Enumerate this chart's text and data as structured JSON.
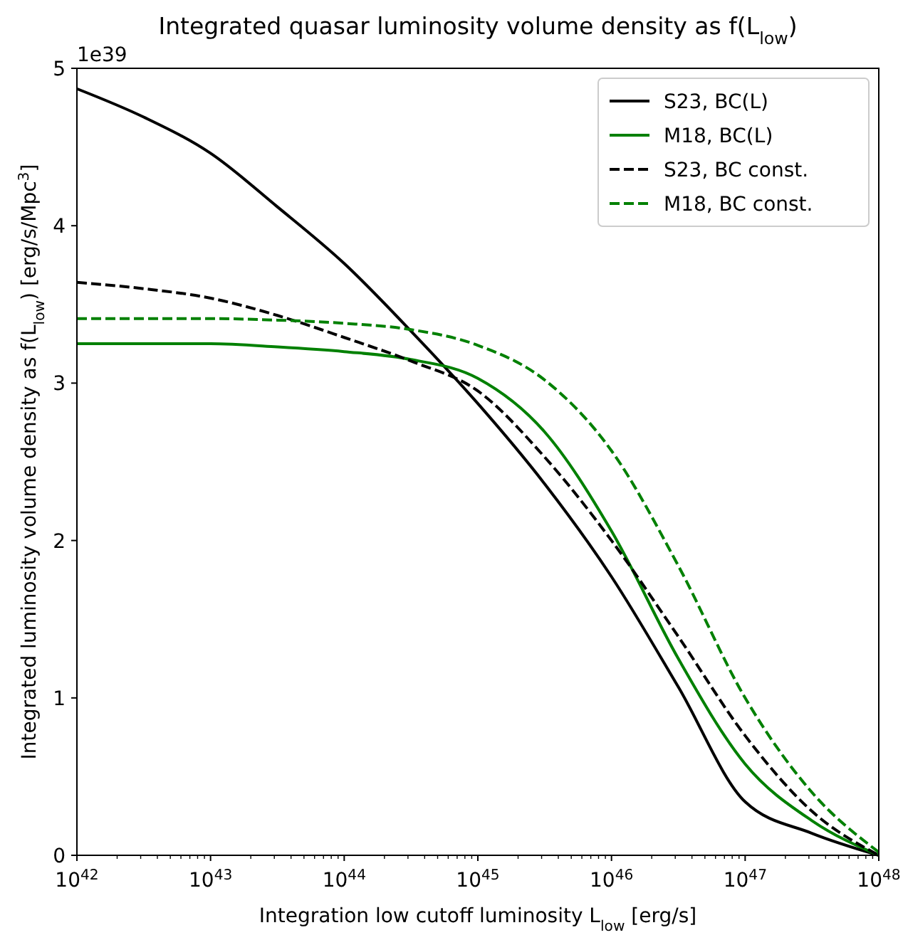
{
  "chart_data": {
    "type": "line",
    "title": "Integrated quasar luminosity volume density as f(L$_{low}$)",
    "xlabel": "Integration low cutoff luminosity L$_{low}$ [erg/s]",
    "ylabel": "Integrated luminosity volume density as f(L$_{low}$) [erg/s/Mpc$^{3}$]",
    "annotations": [
      "1e39"
    ],
    "x": [
      1e+42,
      3.16e+42,
      1e+43,
      3.16e+43,
      1e+44,
      3.16e+44,
      1e+45,
      3.16e+45,
      1e+46,
      3.16e+46,
      1e+47,
      3.16e+47,
      1e+48
    ],
    "series": [
      {
        "name": "S23, BC(L)",
        "color": "#000000",
        "line_style": "solid",
        "values": [
          4.87,
          4.69,
          4.46,
          4.12,
          3.76,
          3.33,
          2.87,
          2.36,
          1.77,
          1.07,
          0.34,
          0.14,
          0
        ]
      },
      {
        "name": "M18, BC(L)",
        "color": "#008000",
        "line_style": "solid",
        "values": [
          3.25,
          3.25,
          3.25,
          3.23,
          3.2,
          3.15,
          3.03,
          2.69,
          2.06,
          1.25,
          0.58,
          0.22,
          0
        ]
      },
      {
        "name": "S23, BC const.",
        "color": "#000000",
        "line_style": "dashed",
        "values": [
          3.64,
          3.6,
          3.54,
          3.43,
          3.29,
          3.14,
          2.95,
          2.53,
          2.0,
          1.39,
          0.76,
          0.28,
          0
        ]
      },
      {
        "name": "M18, BC const.",
        "color": "#008000",
        "line_style": "dashed",
        "values": [
          3.41,
          3.41,
          3.41,
          3.4,
          3.38,
          3.34,
          3.24,
          3.02,
          2.57,
          1.84,
          1.0,
          0.4,
          0.02
        ]
      }
    ],
    "log": "x",
    "xlim": [
      1e+42,
      1e+48
    ],
    "xticks": [
      {
        "value": 1e+42,
        "label": "10$^{42}$"
      },
      {
        "value": 1e+43,
        "label": "10$^{43}$"
      },
      {
        "value": 1e+44,
        "label": "10$^{44}$"
      },
      {
        "value": 1e+45,
        "label": "10$^{45}$"
      },
      {
        "value": 1e+46,
        "label": "10$^{46}$"
      },
      {
        "value": 1e+47,
        "label": "10$^{47}$"
      },
      {
        "value": 1e+48,
        "label": "10$^{48}$"
      }
    ],
    "ylim": [
      0,
      5
    ],
    "yticks": [
      0,
      1,
      2,
      3,
      4,
      5
    ],
    "grid": false,
    "legend": "top right",
    "marker": "none"
  }
}
